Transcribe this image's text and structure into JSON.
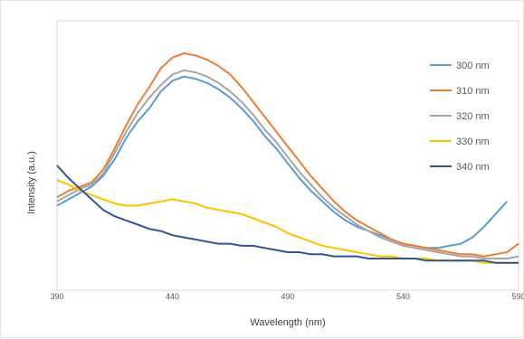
{
  "chart_data": {
    "type": "line",
    "title": "",
    "xlabel": "Wavelength  (nm)",
    "ylabel": "Intensity  (a.u.)",
    "xlim": [
      390,
      590
    ],
    "ylim": [
      0,
      100
    ],
    "x_ticks": [
      390,
      440,
      490,
      540,
      590
    ],
    "x_tick_labels": [
      "390",
      "440",
      "490",
      "540",
      "590"
    ],
    "y_tick_labels_shown": false,
    "grid": false,
    "legend_position": "top-right",
    "series": [
      {
        "name": "300 nm",
        "color": "#5b9bd5",
        "x": [
          390,
          395,
          400,
          405,
          410,
          415,
          420,
          425,
          430,
          435,
          440,
          445,
          450,
          455,
          460,
          465,
          470,
          475,
          480,
          485,
          490,
          495,
          500,
          505,
          510,
          515,
          520,
          525,
          530,
          535,
          540,
          545,
          550,
          555,
          560,
          565,
          570,
          575,
          580,
          585
        ],
        "y": [
          28,
          31,
          34,
          37,
          42,
          50,
          60,
          68,
          74,
          82,
          87,
          89,
          88,
          86,
          83,
          79,
          74,
          68,
          61,
          55,
          48,
          41,
          35,
          30,
          25,
          21,
          18,
          16,
          14,
          12,
          10,
          9,
          8,
          8,
          9,
          10,
          13,
          18,
          24,
          30
        ]
      },
      {
        "name": "310 nm",
        "color": "#ed7d31",
        "x": [
          390,
          395,
          400,
          405,
          410,
          415,
          420,
          425,
          430,
          435,
          440,
          445,
          450,
          455,
          460,
          465,
          470,
          475,
          480,
          485,
          490,
          495,
          500,
          505,
          510,
          515,
          520,
          525,
          530,
          535,
          540,
          545,
          550,
          555,
          560,
          565,
          570,
          575,
          580,
          585,
          590
        ],
        "y": [
          32,
          35,
          37,
          39,
          45,
          55,
          66,
          76,
          84,
          93,
          98,
          100,
          99,
          97,
          94,
          90,
          84,
          77,
          70,
          63,
          56,
          49,
          42,
          36,
          30,
          25,
          21,
          18,
          15,
          12,
          10,
          9,
          8,
          7,
          6,
          5,
          5,
          4,
          5,
          6,
          10
        ]
      },
      {
        "name": "320 nm",
        "color": "#a5a5a5",
        "x": [
          390,
          395,
          400,
          405,
          410,
          415,
          420,
          425,
          430,
          435,
          440,
          445,
          450,
          455,
          460,
          465,
          470,
          475,
          480,
          485,
          490,
          495,
          500,
          505,
          510,
          515,
          520,
          525,
          530,
          535,
          540,
          545,
          550,
          555,
          560,
          565,
          570,
          575,
          580,
          585,
          590
        ],
        "y": [
          30,
          33,
          36,
          38,
          43,
          53,
          63,
          72,
          79,
          85,
          90,
          92,
          91,
          89,
          86,
          82,
          77,
          71,
          64,
          58,
          51,
          44,
          38,
          32,
          27,
          23,
          19,
          16,
          13,
          11,
          9,
          8,
          7,
          6,
          5,
          4,
          4,
          3,
          3,
          3,
          4
        ]
      },
      {
        "name": "330 nm",
        "color": "#ffc000",
        "x": [
          390,
          395,
          400,
          405,
          410,
          415,
          420,
          425,
          430,
          435,
          440,
          445,
          450,
          455,
          460,
          465,
          470,
          475,
          480,
          485,
          490,
          495,
          500,
          505,
          510,
          515,
          520,
          525,
          530,
          535,
          540,
          545,
          550,
          555,
          560,
          565,
          570,
          575,
          580,
          585,
          590
        ],
        "y": [
          40,
          38,
          35,
          33,
          31,
          29,
          28,
          28,
          29,
          30,
          31,
          30,
          29,
          27,
          26,
          25,
          24,
          22,
          20,
          18,
          15,
          13,
          11,
          9,
          8,
          7,
          6,
          5,
          4,
          4,
          3,
          3,
          3,
          2,
          2,
          2,
          2,
          1,
          1,
          1,
          1
        ]
      },
      {
        "name": "340 nm",
        "color": "#2e5597",
        "x": [
          390,
          395,
          400,
          405,
          410,
          415,
          420,
          425,
          430,
          435,
          440,
          445,
          450,
          455,
          460,
          465,
          470,
          475,
          480,
          485,
          490,
          495,
          500,
          505,
          510,
          515,
          520,
          525,
          530,
          535,
          540,
          545,
          550,
          555,
          560,
          565,
          570,
          575,
          580,
          585,
          590
        ],
        "y": [
          47,
          41,
          36,
          31,
          26,
          23,
          21,
          19,
          17,
          16,
          14,
          13,
          12,
          11,
          10,
          10,
          9,
          9,
          8,
          7,
          6,
          6,
          5,
          5,
          4,
          4,
          4,
          3,
          3,
          3,
          3,
          3,
          2,
          2,
          2,
          2,
          2,
          2,
          1,
          1,
          1
        ]
      }
    ]
  }
}
